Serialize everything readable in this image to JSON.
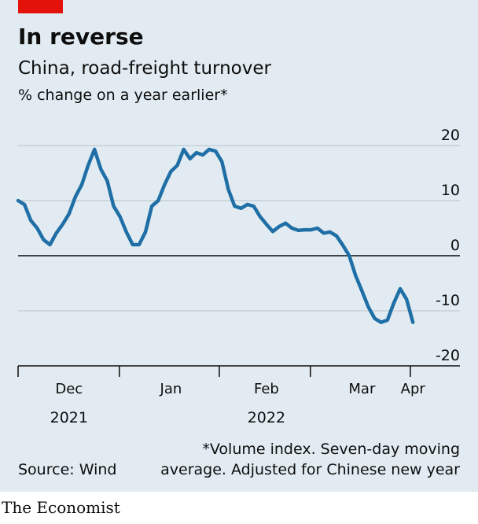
{
  "chart_data": {
    "type": "line",
    "title": "In reverse",
    "subtitle": "China, road-freight turnover",
    "unit_label": "% change on a year earlier*",
    "categories": [
      null,
      null,
      null,
      null,
      null,
      null,
      null,
      null,
      "Dec",
      null,
      null,
      null,
      null,
      null,
      null,
      null,
      null,
      null,
      null,
      null,
      null,
      null,
      null,
      null,
      "Jan",
      null,
      null,
      null,
      null,
      null,
      null,
      null,
      null,
      null,
      null,
      null,
      null,
      null,
      null,
      "Feb",
      null,
      null,
      null,
      null,
      null,
      null,
      null,
      null,
      null,
      null,
      null,
      null,
      null,
      null,
      "Mar",
      null,
      null,
      null,
      null,
      null,
      null,
      null,
      "Apr"
    ],
    "year_labels": [
      "2021",
      "2022"
    ],
    "series": [
      {
        "name": "Road-freight turnover",
        "color": "#1f6fa6",
        "values": [
          10,
          9.3,
          6.4,
          5,
          2.9,
          2,
          4.1,
          5.7,
          7.6,
          10.7,
          12.9,
          16.4,
          19.3,
          15.7,
          13.6,
          9,
          7.1,
          4.3,
          2,
          2,
          4.3,
          9,
          10,
          12.9,
          15.3,
          16.4,
          19.3,
          17.6,
          18.7,
          18.3,
          19.3,
          19,
          17.1,
          12.1,
          9,
          8.6,
          9.3,
          9,
          7.1,
          5.7,
          4.4,
          5.3,
          5.9,
          5,
          4.6,
          4.7,
          4.7,
          5,
          4.1,
          4.3,
          3.6,
          1.9,
          0,
          -3.6,
          -6.4,
          -9.3,
          -11.4,
          -12.1,
          -11.7,
          -8.6,
          -6,
          -7.9,
          -12.1
        ]
      }
    ],
    "ylim": [
      -20,
      20
    ],
    "yticks": [
      20,
      10,
      0,
      -10,
      -20
    ],
    "grid": true,
    "footnote": [
      "*Volume index. Seven-day moving",
      "average. Adjusted for Chinese new year"
    ],
    "source": "Source: Wind",
    "brand": "The Economist"
  }
}
